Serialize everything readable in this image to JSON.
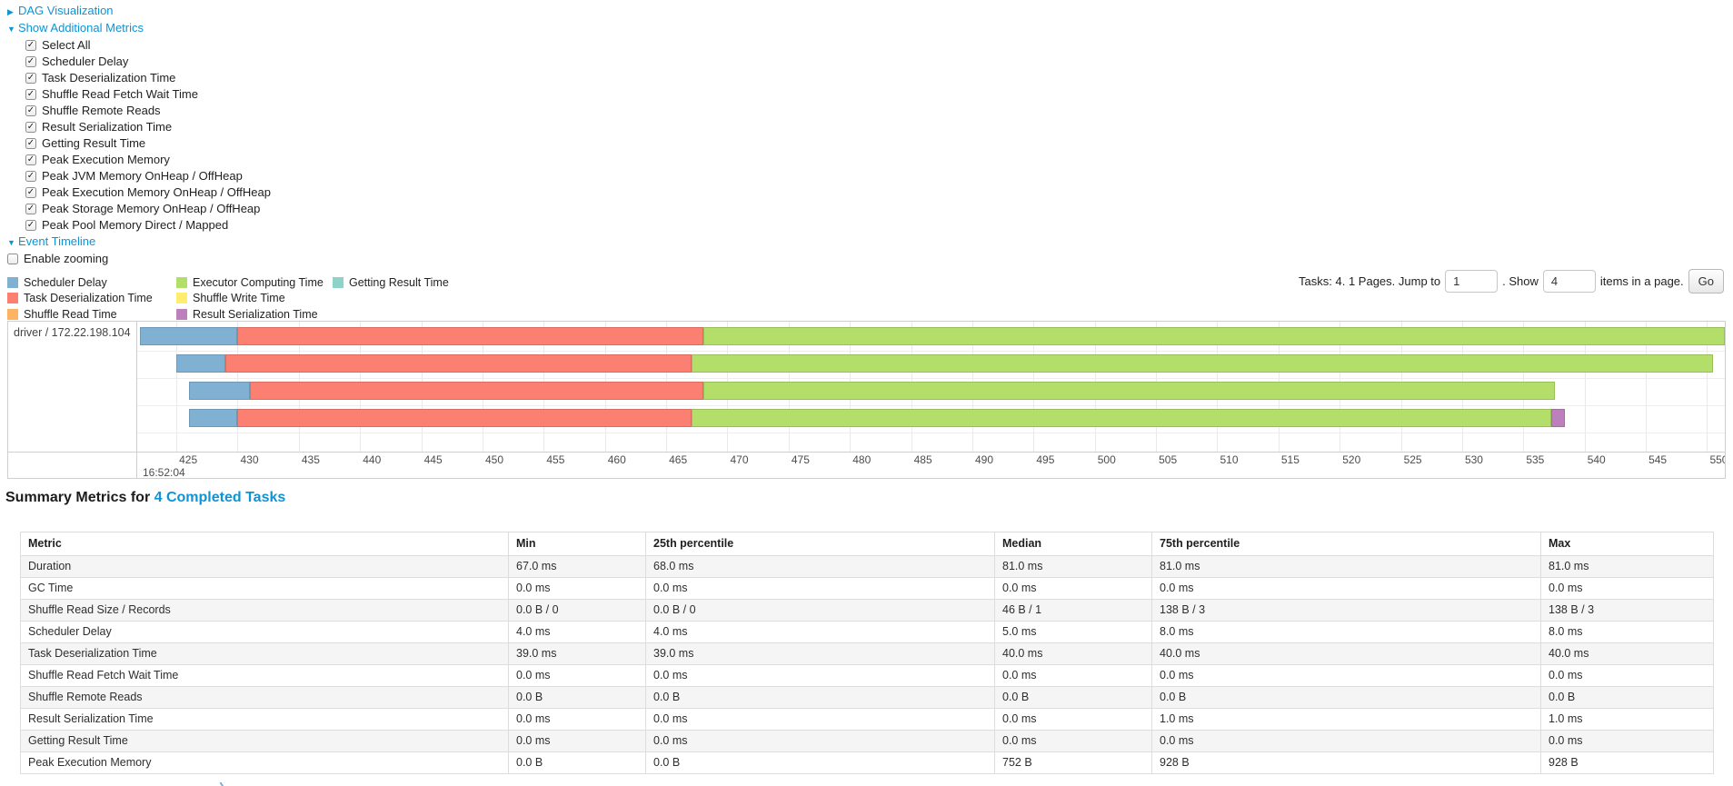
{
  "colors": {
    "link": "#0d94d6",
    "scheduler_delay": "#80B1D3",
    "task_deserialization": "#FB8072",
    "shuffle_read": "#FDB462",
    "executor_computing": "#B3DE69",
    "shuffle_write": "#FFED6F",
    "result_serialization": "#BC80BD",
    "getting_result": "#8DD3C7"
  },
  "toggles": {
    "dag": "DAG Visualization",
    "additional_metrics": "Show Additional Metrics",
    "event_timeline": "Event Timeline"
  },
  "metric_checkboxes": [
    {
      "label": "Select All",
      "checked": true
    },
    {
      "label": "Scheduler Delay",
      "checked": true
    },
    {
      "label": "Task Deserialization Time",
      "checked": true
    },
    {
      "label": "Shuffle Read Fetch Wait Time",
      "checked": true
    },
    {
      "label": "Shuffle Remote Reads",
      "checked": true
    },
    {
      "label": "Result Serialization Time",
      "checked": true
    },
    {
      "label": "Getting Result Time",
      "checked": true
    },
    {
      "label": "Peak Execution Memory",
      "checked": true
    },
    {
      "label": "Peak JVM Memory OnHeap / OffHeap",
      "checked": true
    },
    {
      "label": "Peak Execution Memory OnHeap / OffHeap",
      "checked": true
    },
    {
      "label": "Peak Storage Memory OnHeap / OffHeap",
      "checked": true
    },
    {
      "label": "Peak Pool Memory Direct / Mapped",
      "checked": true
    }
  ],
  "enable_zooming": {
    "label": "Enable zooming",
    "checked": false
  },
  "legend": [
    {
      "label": "Scheduler Delay",
      "color": "#80B1D3"
    },
    {
      "label": "Task Deserialization Time",
      "color": "#FB8072"
    },
    {
      "label": "Shuffle Read Time",
      "color": "#FDB462"
    },
    {
      "label": "Executor Computing Time",
      "color": "#B3DE69"
    },
    {
      "label": "Shuffle Write Time",
      "color": "#FFED6F"
    },
    {
      "label": "Result Serialization Time",
      "color": "#BC80BD"
    },
    {
      "label": "Getting Result Time",
      "color": "#8DD3C7"
    }
  ],
  "pagination": {
    "prefix": "Tasks: 4. 1 Pages. Jump to",
    "jump_value": "1",
    "mid": ". Show",
    "show_value": "4",
    "suffix": "items in a page.",
    "go": "Go"
  },
  "chart_data": {
    "type": "timeline",
    "group_label": "driver / 172.22.198.104",
    "axis": {
      "unit": "ms",
      "major_label": "16:52:04",
      "ticks": [
        425,
        430,
        435,
        440,
        445,
        450,
        455,
        460,
        465,
        470,
        475,
        480,
        485,
        490,
        495,
        500,
        505,
        510,
        515,
        520,
        525,
        530,
        535,
        540,
        545,
        550
      ],
      "domain": [
        421.8,
        551.45
      ]
    },
    "tasks": [
      {
        "segments": [
          {
            "name": "Scheduler Delay",
            "color": "#80B1D3",
            "from": 422.0,
            "to": 430.0
          },
          {
            "name": "Task Deserialization Time",
            "color": "#FB8072",
            "from": 430.0,
            "to": 468.0
          },
          {
            "name": "Executor Computing Time",
            "color": "#B3DE69",
            "from": 468.0,
            "to": 551.45
          }
        ]
      },
      {
        "segments": [
          {
            "name": "Scheduler Delay",
            "color": "#80B1D3",
            "from": 425.0,
            "to": 429.0
          },
          {
            "name": "Task Deserialization Time",
            "color": "#FB8072",
            "from": 429.0,
            "to": 467.1
          },
          {
            "name": "Executor Computing Time",
            "color": "#B3DE69",
            "from": 467.1,
            "to": 550.5
          }
        ]
      },
      {
        "segments": [
          {
            "name": "Scheduler Delay",
            "color": "#80B1D3",
            "from": 426.0,
            "to": 431.0
          },
          {
            "name": "Task Deserialization Time",
            "color": "#FB8072",
            "from": 431.0,
            "to": 468.0
          },
          {
            "name": "Executor Computing Time",
            "color": "#B3DE69",
            "from": 468.0,
            "to": 537.6
          }
        ]
      },
      {
        "segments": [
          {
            "name": "Scheduler Delay",
            "color": "#80B1D3",
            "from": 426.0,
            "to": 430.0
          },
          {
            "name": "Task Deserialization Time",
            "color": "#FB8072",
            "from": 430.0,
            "to": 467.1
          },
          {
            "name": "Executor Computing Time",
            "color": "#B3DE69",
            "from": 467.1,
            "to": 537.3
          },
          {
            "name": "Result Serialization Time",
            "color": "#BC80BD",
            "from": 537.3,
            "to": 538.4
          }
        ]
      }
    ]
  },
  "summary": {
    "heading_prefix": "Summary Metrics for",
    "heading_link": "4 Completed Tasks",
    "columns": [
      "Metric",
      "Min",
      "25th percentile",
      "Median",
      "75th percentile",
      "Max"
    ],
    "rows": [
      {
        "metric": "Duration",
        "values": [
          "67.0 ms",
          "68.0 ms",
          "81.0 ms",
          "81.0 ms",
          "81.0 ms"
        ]
      },
      {
        "metric": "GC Time",
        "values": [
          "0.0 ms",
          "0.0 ms",
          "0.0 ms",
          "0.0 ms",
          "0.0 ms"
        ]
      },
      {
        "metric": "Shuffle Read Size / Records",
        "values": [
          "0.0 B / 0",
          "0.0 B / 0",
          "46 B / 1",
          "138 B / 3",
          "138 B / 3"
        ]
      },
      {
        "metric": "Scheduler Delay",
        "values": [
          "4.0 ms",
          "4.0 ms",
          "5.0 ms",
          "8.0 ms",
          "8.0 ms"
        ]
      },
      {
        "metric": "Task Deserialization Time",
        "values": [
          "39.0 ms",
          "39.0 ms",
          "40.0 ms",
          "40.0 ms",
          "40.0 ms"
        ]
      },
      {
        "metric": "Shuffle Read Fetch Wait Time",
        "values": [
          "0.0 ms",
          "0.0 ms",
          "0.0 ms",
          "0.0 ms",
          "0.0 ms"
        ]
      },
      {
        "metric": "Shuffle Remote Reads",
        "values": [
          "0.0 B",
          "0.0 B",
          "0.0 B",
          "0.0 B",
          "0.0 B"
        ]
      },
      {
        "metric": "Result Serialization Time",
        "values": [
          "0.0 ms",
          "0.0 ms",
          "0.0 ms",
          "1.0 ms",
          "1.0 ms"
        ]
      },
      {
        "metric": "Getting Result Time",
        "values": [
          "0.0 ms",
          "0.0 ms",
          "0.0 ms",
          "0.0 ms",
          "0.0 ms"
        ]
      },
      {
        "metric": "Peak Execution Memory",
        "values": [
          "0.0 B",
          "0.0 B",
          "752 B",
          "928 B",
          "928 B"
        ]
      }
    ]
  }
}
